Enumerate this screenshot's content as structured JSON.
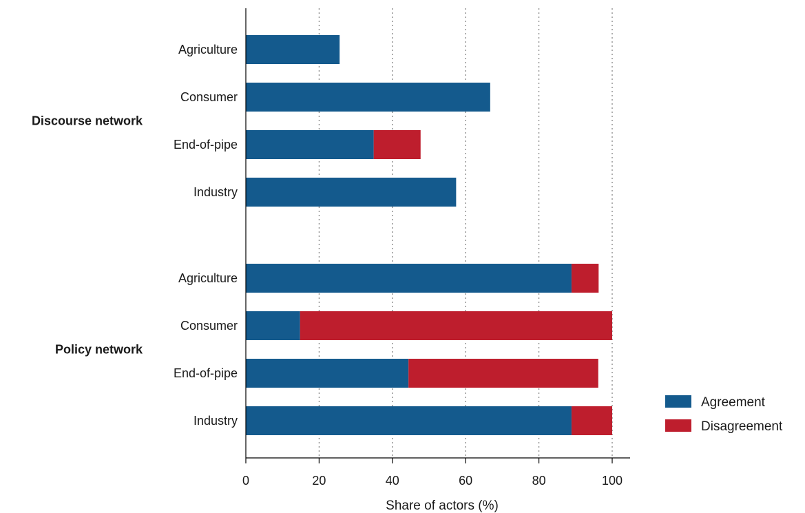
{
  "chart_data": {
    "type": "bar",
    "orientation": "horizontal",
    "stacked": true,
    "xlabel": "Share of actors (%)",
    "xlim": [
      0,
      105
    ],
    "xticks": [
      0,
      20,
      40,
      60,
      80,
      100
    ],
    "grid": "vertical dotted",
    "legend_position": "bottom-right",
    "series": [
      {
        "name": "Agreement",
        "color": "#145a8d"
      },
      {
        "name": "Disagreement",
        "color": "#be1e2d"
      }
    ],
    "groups": [
      {
        "label": "Discourse network",
        "bars": [
          {
            "category": "Agriculture",
            "values": [
              25.6,
              0
            ]
          },
          {
            "category": "Consumer",
            "values": [
              66.7,
              0
            ]
          },
          {
            "category": "End-of-pipe",
            "values": [
              34.9,
              12.8
            ]
          },
          {
            "category": "Industry",
            "values": [
              57.4,
              0
            ]
          }
        ]
      },
      {
        "label": "Policy network",
        "bars": [
          {
            "category": "Agriculture",
            "values": [
              88.9,
              7.4
            ]
          },
          {
            "category": "Consumer",
            "values": [
              14.8,
              85.2
            ]
          },
          {
            "category": "End-of-pipe",
            "values": [
              44.4,
              51.8
            ]
          },
          {
            "category": "Industry",
            "values": [
              88.9,
              11.1
            ]
          }
        ]
      }
    ]
  }
}
